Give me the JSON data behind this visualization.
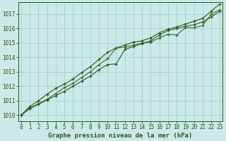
{
  "title": "Graphe pression niveau de la mer (hPa)",
  "xlabel_ticks": [
    0,
    1,
    2,
    3,
    4,
    5,
    6,
    7,
    8,
    9,
    10,
    11,
    12,
    13,
    14,
    15,
    16,
    17,
    18,
    19,
    20,
    21,
    22,
    23
  ],
  "ylim": [
    1009.6,
    1017.8
  ],
  "xlim": [
    -0.3,
    23.3
  ],
  "yticks": [
    1010,
    1011,
    1012,
    1013,
    1014,
    1015,
    1016,
    1017
  ],
  "background_color": "#cce8e8",
  "grid_color": "#aacece",
  "line_color_dark": "#2a5a22",
  "line_color_mid": "#3a7030",
  "series1": [
    1010.0,
    1010.5,
    1010.8,
    1011.1,
    1011.5,
    1011.9,
    1012.2,
    1012.6,
    1013.0,
    1013.5,
    1013.9,
    1014.65,
    1014.7,
    1014.85,
    1015.0,
    1015.05,
    1015.35,
    1015.6,
    1015.55,
    1016.05,
    1016.05,
    1016.2,
    1017.0,
    1017.3
  ],
  "series2": [
    1010.0,
    1010.45,
    1010.75,
    1011.05,
    1011.35,
    1011.65,
    1012.0,
    1012.35,
    1012.7,
    1013.15,
    1013.5,
    1013.55,
    1014.55,
    1014.75,
    1014.95,
    1015.15,
    1015.55,
    1015.85,
    1016.0,
    1016.15,
    1016.25,
    1016.45,
    1016.8,
    1017.2
  ],
  "series3": [
    1010.0,
    1010.6,
    1011.0,
    1011.45,
    1011.85,
    1012.15,
    1012.5,
    1012.95,
    1013.35,
    1013.85,
    1014.35,
    1014.65,
    1014.85,
    1015.05,
    1015.15,
    1015.35,
    1015.7,
    1015.95,
    1016.1,
    1016.3,
    1016.5,
    1016.7,
    1017.2,
    1017.7
  ],
  "marker_color": "#2a5a22",
  "title_fontsize": 6.5,
  "tick_fontsize": 5.5
}
